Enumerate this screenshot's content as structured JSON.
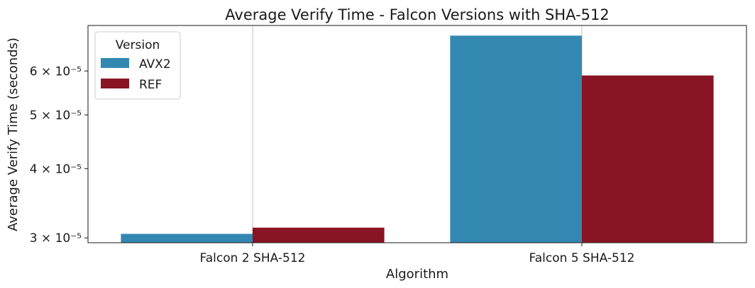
{
  "chart_data": {
    "type": "bar",
    "title": "Average Verify Time - Falcon Versions with SHA-512",
    "xlabel": "Algorithm",
    "ylabel": "Average Verify Time (seconds)",
    "yscale": "log",
    "ylim": [
      2.94e-05,
      7.25e-05
    ],
    "grid": "x",
    "categories": [
      "Falcon 2 SHA-512",
      "Falcon 5 SHA-512"
    ],
    "series": [
      {
        "name": "AVX2",
        "color": "#3288b0",
        "values": [
          3.05e-05,
          6.95e-05
        ]
      },
      {
        "name": "REF",
        "color": "#881424",
        "values": [
          3.13e-05,
          5.89e-05
        ]
      }
    ],
    "yticks": [
      {
        "value": 3e-05,
        "label": "3 × 10⁻⁵"
      },
      {
        "value": 4e-05,
        "label": "4 × 10⁻⁵"
      },
      {
        "value": 5e-05,
        "label": "5 × 10⁻⁵"
      },
      {
        "value": 6e-05,
        "label": "6 × 10⁻⁵"
      }
    ],
    "legend": {
      "title": "Version",
      "placement": "top-left"
    }
  }
}
